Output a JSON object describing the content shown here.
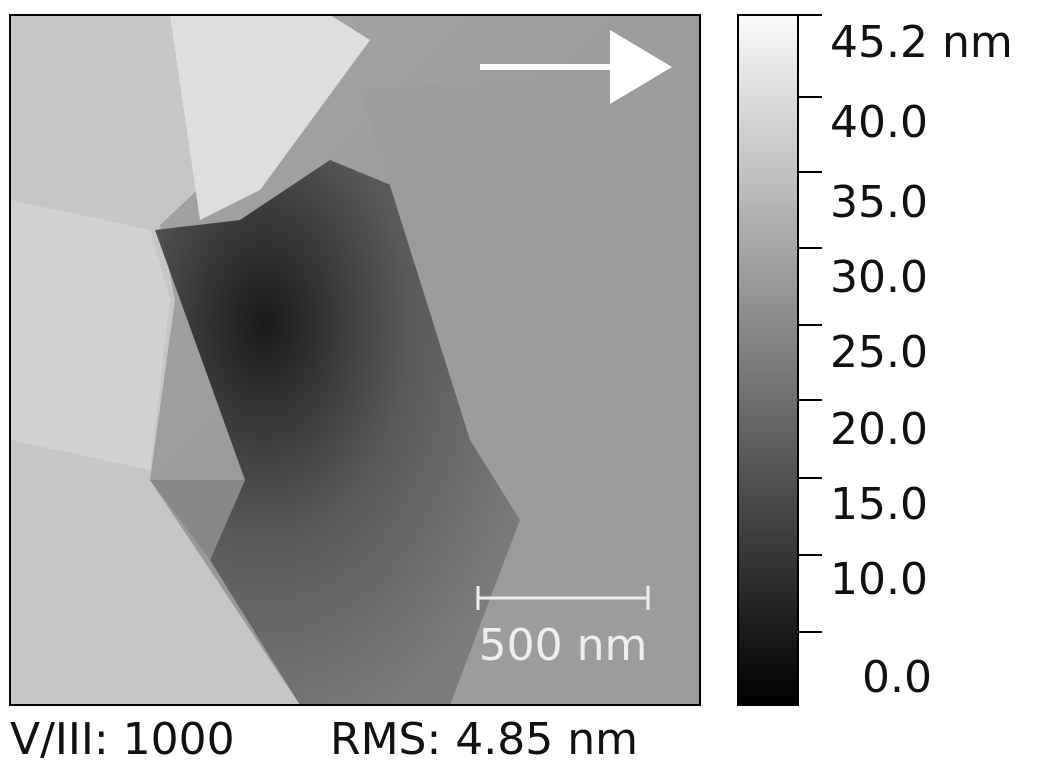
{
  "image": {
    "scale_bar": "500 nm"
  },
  "colorbar": {
    "ticks": [
      "45.2 nm",
      "40.0",
      "35.0",
      "30.0",
      "25.0",
      "20.0",
      "15.0",
      "10.0",
      "0.0"
    ]
  },
  "caption": {
    "condition": "V/III: 1000",
    "rms": "RMS: 4.85 nm"
  }
}
